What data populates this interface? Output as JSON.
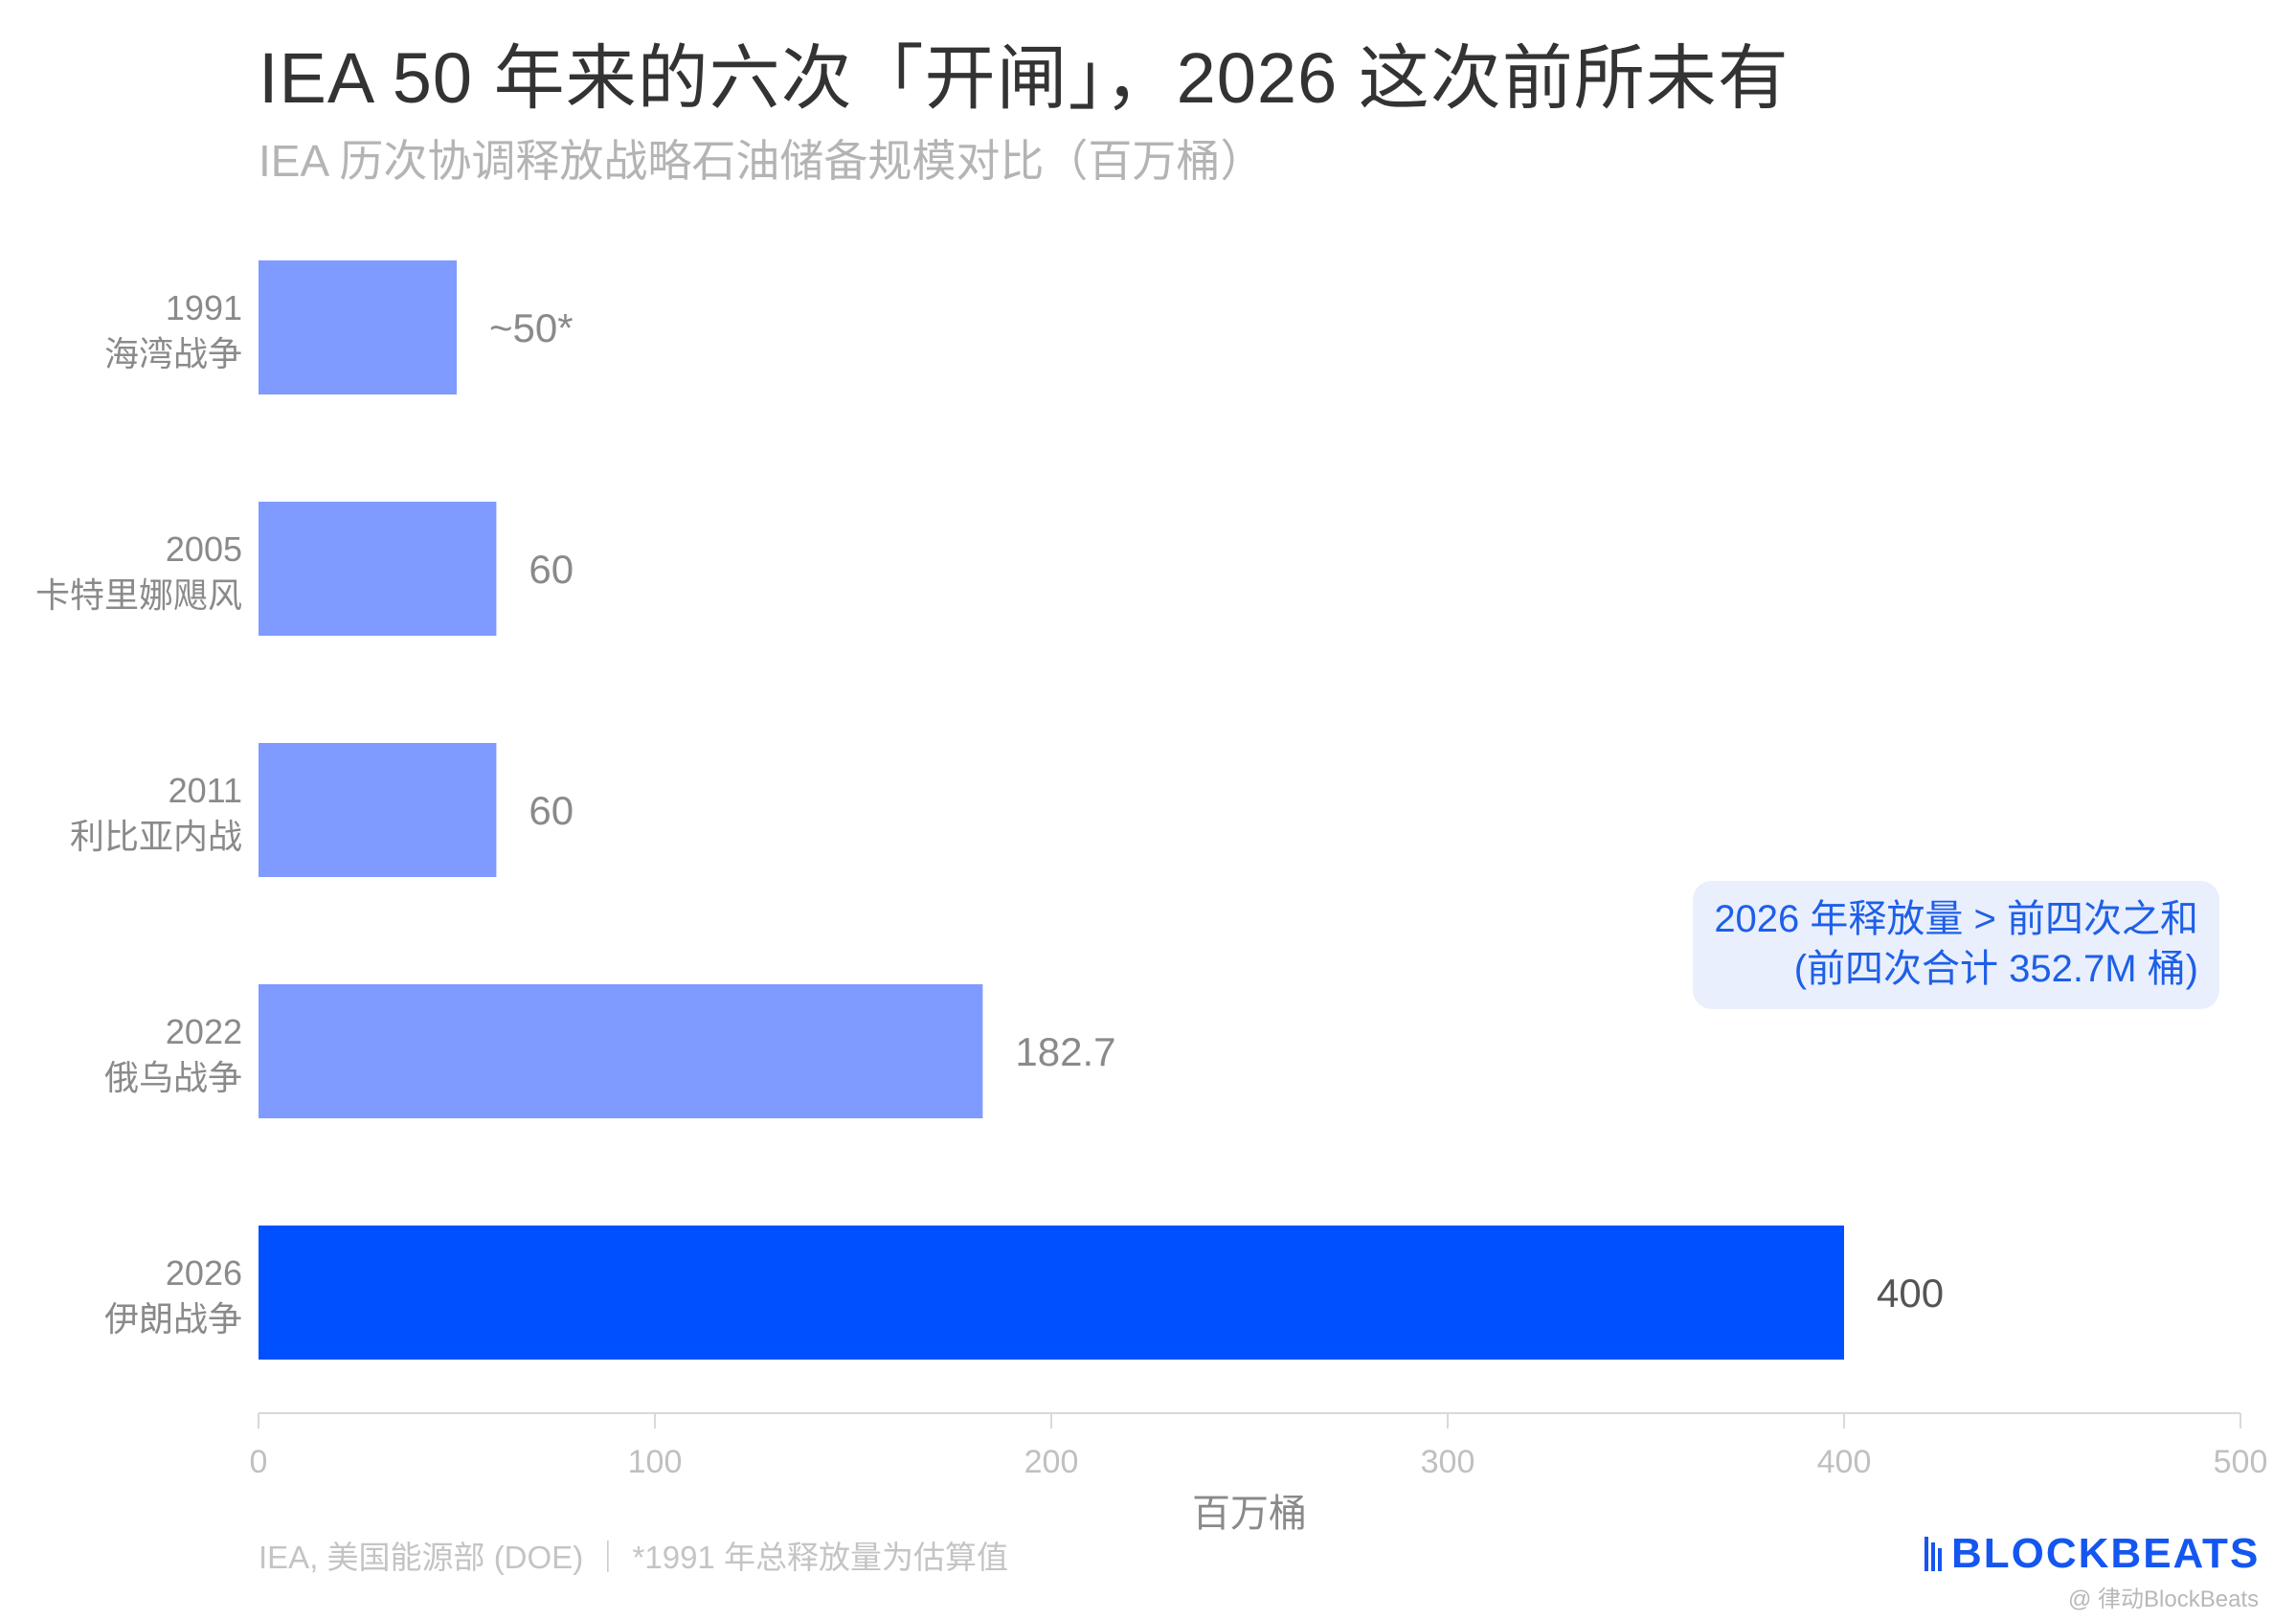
{
  "header": {
    "title": "IEA 50 年来的六次「开闸」，2026 这次前所未有",
    "subtitle": "IEA 历次协调释放战略石油储备规模对比（百万桶）"
  },
  "chart_data": {
    "type": "bar",
    "orientation": "horizontal",
    "categories": [
      {
        "year": "1991",
        "event": "海湾战争"
      },
      {
        "year": "2005",
        "event": "卡特里娜飓风"
      },
      {
        "year": "2011",
        "event": "利比亚内战"
      },
      {
        "year": "2022",
        "event": "俄乌战争"
      },
      {
        "year": "2026",
        "event": "伊朗战争"
      }
    ],
    "values": [
      50,
      60,
      60,
      182.7,
      400
    ],
    "value_labels": [
      "~50*",
      "60",
      "60",
      "182.7",
      "400"
    ],
    "xlabel": "百万桶",
    "xlim": [
      0,
      500
    ],
    "xticks": [
      0,
      100,
      200,
      300,
      400,
      500
    ],
    "grid": false,
    "colors": {
      "default": "#7f9bff",
      "highlight": "#0050ff",
      "axis": "#d9d9d9",
      "label": "#8a8a8a",
      "highlight_label": "#555555"
    },
    "highlight_index": 4
  },
  "annotation": {
    "line1": "2026 年释放量 > 前四次之和",
    "line2": "(前四次合计 352.7M 桶)"
  },
  "footer": {
    "source": "IEA, 美国能源部 (DOE) ｜ *1991 年总释放量为估算值",
    "brand": "BLOCKBEATS",
    "watermark": "@ 律动BlockBeats"
  }
}
